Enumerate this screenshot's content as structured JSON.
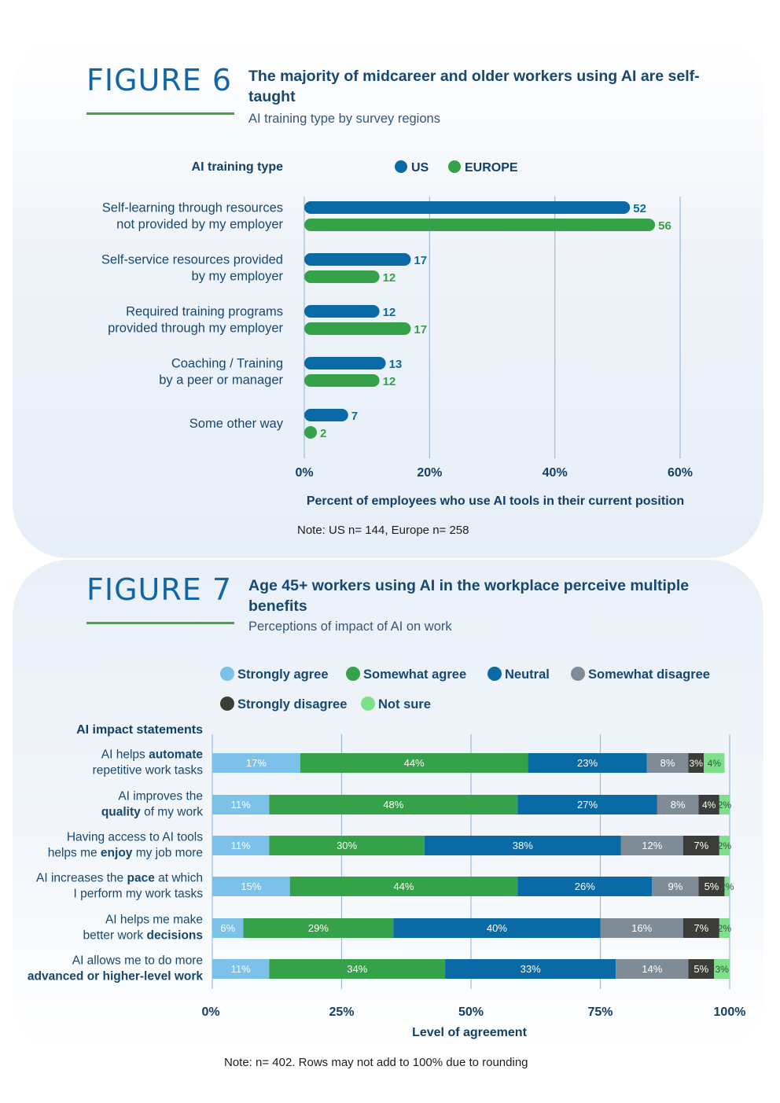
{
  "figure6": {
    "label": "FIGURE 6",
    "title": "The majority of midcareer and older workers using AI are self-taught",
    "subtitle": "AI training type by survey regions",
    "note": "Note: US n= 144, Europe n= 258",
    "colors": {
      "US": "#0a6aa6",
      "EUROPE": "#35a24a"
    }
  },
  "figure7": {
    "label": "FIGURE 7",
    "title": "Age 45+ workers using AI in the workplace perceive multiple benefits",
    "subtitle": "Perceptions of impact of AI on work",
    "note": "Note: n= 402. Rows may not add to 100% due to rounding",
    "colors": {
      "Strongly agree": "#7cc1ea",
      "Somewhat agree": "#35a24a",
      "Neutral": "#0a6aa6",
      "Somewhat disagree": "#7f8c96",
      "Strongly disagree": "#3b3d38",
      "Not sure": "#7ee08a"
    }
  },
  "chart_data": [
    {
      "type": "bar",
      "orientation": "horizontal",
      "title": "The majority of midcareer and older workers using AI are self-taught",
      "subtitle": "AI training type by survey regions",
      "category_axis_title": "AI training type",
      "xlabel": "Percent of employees who use AI tools in their current position",
      "xlim": [
        0,
        60
      ],
      "xticks": [
        "0%",
        "20%",
        "40%",
        "60%"
      ],
      "legend": "top",
      "grid": true,
      "categories": [
        [
          "Self-learning through resources",
          "not provided by my employer"
        ],
        [
          "Self-service resources provided",
          "by my employer"
        ],
        [
          "Required training programs",
          "provided through my employer"
        ],
        [
          "Coaching / Training",
          "by a peer or manager"
        ],
        [
          "Some other way"
        ]
      ],
      "series": [
        {
          "name": "US",
          "values": [
            52,
            17,
            12,
            13,
            7
          ]
        },
        {
          "name": "EUROPE",
          "values": [
            56,
            12,
            17,
            12,
            2
          ]
        }
      ]
    },
    {
      "type": "bar",
      "orientation": "horizontal",
      "stacked": true,
      "title": "Age 45+ workers using AI in the workplace perceive multiple benefits",
      "subtitle": "Perceptions of impact of AI on work",
      "category_axis_title": "AI impact statements",
      "xlabel": "Level of agreement",
      "xlim": [
        0,
        100
      ],
      "xticks": [
        "0%",
        "25%",
        "50%",
        "75%",
        "100%"
      ],
      "legend": "top",
      "grid": true,
      "categories": [
        [
          {
            "t": "AI helps ",
            "b": false
          },
          {
            "t": "automate",
            "b": true
          },
          {
            "t": "|repetitive work tasks",
            "b": false
          }
        ],
        [
          {
            "t": "AI improves the|",
            "b": false
          },
          {
            "t": "quality",
            "b": true
          },
          {
            "t": " of my work",
            "b": false
          }
        ],
        [
          {
            "t": "Having access to AI tools|helps me ",
            "b": false
          },
          {
            "t": "enjoy",
            "b": true
          },
          {
            "t": " my job more",
            "b": false
          }
        ],
        [
          {
            "t": "AI increases the ",
            "b": false
          },
          {
            "t": "pace",
            "b": true
          },
          {
            "t": " at which|I perform my work tasks",
            "b": false
          }
        ],
        [
          {
            "t": "AI helps me make|better work ",
            "b": false
          },
          {
            "t": "decisions",
            "b": true
          }
        ],
        [
          {
            "t": "AI allows me to do more|",
            "b": false
          },
          {
            "t": "advanced or higher-level work",
            "b": true
          }
        ]
      ],
      "series": [
        {
          "name": "Strongly agree",
          "values": [
            17,
            11,
            11,
            15,
            6,
            11
          ]
        },
        {
          "name": "Somewhat agree",
          "values": [
            44,
            48,
            30,
            44,
            29,
            34
          ]
        },
        {
          "name": "Neutral",
          "values": [
            23,
            27,
            38,
            26,
            40,
            33
          ]
        },
        {
          "name": "Somewhat disagree",
          "values": [
            8,
            8,
            12,
            9,
            16,
            14
          ]
        },
        {
          "name": "Strongly disagree",
          "values": [
            3,
            4,
            7,
            5,
            7,
            5
          ]
        },
        {
          "name": "Not sure",
          "values": [
            4,
            2,
            2,
            2,
            2,
            3
          ]
        }
      ]
    }
  ]
}
